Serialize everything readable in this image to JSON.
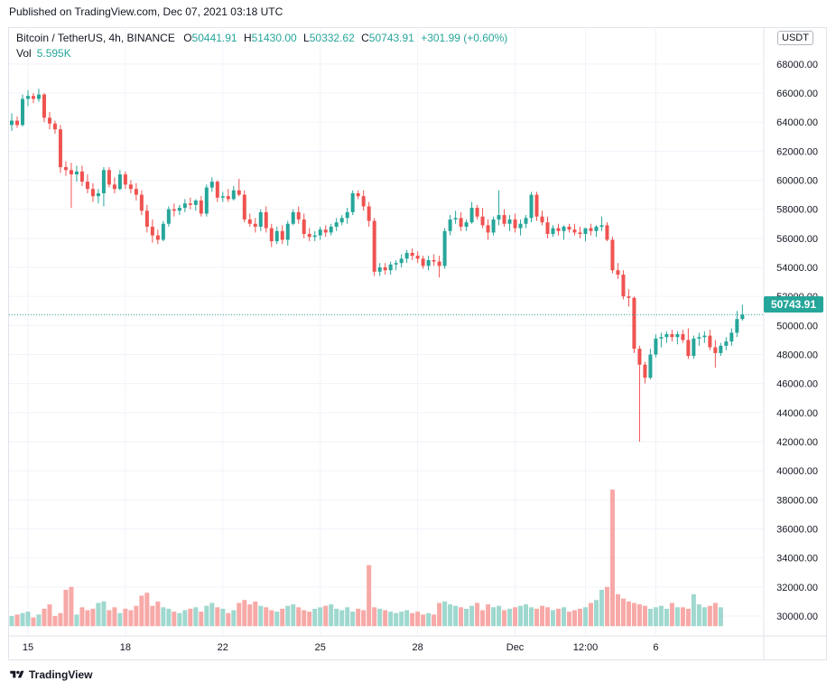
{
  "header": {
    "published": "Published on TradingView.com, Dec 07, 2021 03:18 UTC"
  },
  "legend": {
    "symbol": "Bitcoin / TetherUS, 4h, BINANCE",
    "o_key": "O",
    "o_val": "50441.91",
    "h_key": "H",
    "h_val": "51430.00",
    "l_key": "L",
    "l_val": "50332.62",
    "c_key": "C",
    "c_val": "50743.91",
    "change": "+301.99 (+0.60%)",
    "vol_label": "Vol",
    "vol_val": "5.595K"
  },
  "currency": "USDT",
  "last_price_label": "50743.91",
  "footer": {
    "brand": "TradingView"
  },
  "colors": {
    "up": "#26a69a",
    "down": "#ef5350",
    "vol_up": "#9fd8cf",
    "vol_down": "#f7a9a7",
    "grid": "#f0f3fa"
  },
  "chart_data": {
    "type": "candlestick",
    "y_axis": {
      "range": [
        29500,
        68800
      ],
      "ticks": [
        30000,
        32000,
        34000,
        36000,
        38000,
        40000,
        42000,
        44000,
        46000,
        48000,
        50000,
        52000,
        54000,
        56000,
        58000,
        60000,
        62000,
        64000,
        66000,
        68000
      ],
      "tick_labels": [
        "30000.00",
        "32000.00",
        "34000.00",
        "36000.00",
        "38000.00",
        "40000.00",
        "42000.00",
        "44000.00",
        "46000.00",
        "48000.00",
        "50000.00",
        "52000.00",
        "54000.00",
        "56000.00",
        "58000.00",
        "60000.00",
        "62000.00",
        "64000.00",
        "66000.00",
        "68000.00"
      ]
    },
    "x_axis": {
      "tick_labels": [
        "15",
        "18",
        "22",
        "25",
        "28",
        "Dec",
        "12:00",
        "6"
      ],
      "tick_bar_index": [
        3,
        21,
        39,
        57,
        75,
        93,
        106,
        119
      ]
    },
    "last_price": 50743.91,
    "candles": [
      {
        "o": 63800,
        "h": 64600,
        "l": 63400,
        "c": 64100
      },
      {
        "o": 64100,
        "h": 64400,
        "l": 63600,
        "c": 63800
      },
      {
        "o": 63800,
        "h": 65900,
        "l": 63700,
        "c": 65600
      },
      {
        "o": 65600,
        "h": 66200,
        "l": 65100,
        "c": 65800
      },
      {
        "o": 65800,
        "h": 66000,
        "l": 65300,
        "c": 65600
      },
      {
        "o": 65600,
        "h": 66300,
        "l": 65400,
        "c": 65900
      },
      {
        "o": 65900,
        "h": 66000,
        "l": 64000,
        "c": 64300
      },
      {
        "o": 64300,
        "h": 64700,
        "l": 63500,
        "c": 63900
      },
      {
        "o": 63900,
        "h": 64100,
        "l": 63200,
        "c": 63500
      },
      {
        "o": 63500,
        "h": 63800,
        "l": 60500,
        "c": 60900
      },
      {
        "o": 60900,
        "h": 61300,
        "l": 60300,
        "c": 60700
      },
      {
        "o": 60700,
        "h": 61200,
        "l": 58100,
        "c": 60400
      },
      {
        "o": 60400,
        "h": 61000,
        "l": 59900,
        "c": 60600
      },
      {
        "o": 60600,
        "h": 61000,
        "l": 59600,
        "c": 59900
      },
      {
        "o": 59900,
        "h": 60400,
        "l": 59100,
        "c": 59400
      },
      {
        "o": 59400,
        "h": 59800,
        "l": 58500,
        "c": 58900
      },
      {
        "o": 58900,
        "h": 59400,
        "l": 58400,
        "c": 59100
      },
      {
        "o": 59100,
        "h": 60900,
        "l": 58200,
        "c": 60700
      },
      {
        "o": 60700,
        "h": 60900,
        "l": 59500,
        "c": 59700
      },
      {
        "o": 59700,
        "h": 60200,
        "l": 59100,
        "c": 59400
      },
      {
        "o": 59400,
        "h": 60700,
        "l": 59300,
        "c": 60400
      },
      {
        "o": 60400,
        "h": 60600,
        "l": 59400,
        "c": 59700
      },
      {
        "o": 59700,
        "h": 60000,
        "l": 59100,
        "c": 59400
      },
      {
        "o": 59400,
        "h": 59800,
        "l": 58600,
        "c": 59000
      },
      {
        "o": 59000,
        "h": 59300,
        "l": 57600,
        "c": 57900
      },
      {
        "o": 57900,
        "h": 58300,
        "l": 56400,
        "c": 56800
      },
      {
        "o": 56800,
        "h": 57300,
        "l": 55700,
        "c": 56200
      },
      {
        "o": 56200,
        "h": 56600,
        "l": 55600,
        "c": 55900
      },
      {
        "o": 55900,
        "h": 57200,
        "l": 55800,
        "c": 57000
      },
      {
        "o": 57000,
        "h": 58200,
        "l": 56800,
        "c": 58000
      },
      {
        "o": 58000,
        "h": 58400,
        "l": 57500,
        "c": 57900
      },
      {
        "o": 57900,
        "h": 58300,
        "l": 57600,
        "c": 58100
      },
      {
        "o": 58100,
        "h": 58700,
        "l": 57800,
        "c": 58400
      },
      {
        "o": 58400,
        "h": 58800,
        "l": 58000,
        "c": 58300
      },
      {
        "o": 58300,
        "h": 58700,
        "l": 57900,
        "c": 58600
      },
      {
        "o": 58600,
        "h": 58900,
        "l": 57500,
        "c": 57700
      },
      {
        "o": 57700,
        "h": 59700,
        "l": 57500,
        "c": 59500
      },
      {
        "o": 59500,
        "h": 60200,
        "l": 59200,
        "c": 59900
      },
      {
        "o": 59900,
        "h": 60000,
        "l": 58500,
        "c": 58800
      },
      {
        "o": 58800,
        "h": 59200,
        "l": 58500,
        "c": 58900
      },
      {
        "o": 58900,
        "h": 59400,
        "l": 58500,
        "c": 58700
      },
      {
        "o": 58700,
        "h": 59600,
        "l": 58600,
        "c": 59300
      },
      {
        "o": 59300,
        "h": 60100,
        "l": 58900,
        "c": 59000
      },
      {
        "o": 59000,
        "h": 59300,
        "l": 57100,
        "c": 57300
      },
      {
        "o": 57300,
        "h": 57700,
        "l": 56800,
        "c": 57000
      },
      {
        "o": 57000,
        "h": 57400,
        "l": 56400,
        "c": 56800
      },
      {
        "o": 56800,
        "h": 58000,
        "l": 56500,
        "c": 57800
      },
      {
        "o": 57800,
        "h": 58200,
        "l": 56400,
        "c": 56700
      },
      {
        "o": 56700,
        "h": 57000,
        "l": 55400,
        "c": 55800
      },
      {
        "o": 55800,
        "h": 56800,
        "l": 55600,
        "c": 56500
      },
      {
        "o": 56500,
        "h": 56900,
        "l": 55600,
        "c": 55900
      },
      {
        "o": 55900,
        "h": 57200,
        "l": 55500,
        "c": 57000
      },
      {
        "o": 57000,
        "h": 58000,
        "l": 56900,
        "c": 57800
      },
      {
        "o": 57800,
        "h": 58200,
        "l": 57000,
        "c": 57300
      },
      {
        "o": 57300,
        "h": 57700,
        "l": 56000,
        "c": 56300
      },
      {
        "o": 56300,
        "h": 56700,
        "l": 55800,
        "c": 56100
      },
      {
        "o": 56100,
        "h": 56500,
        "l": 55800,
        "c": 56200
      },
      {
        "o": 56200,
        "h": 56800,
        "l": 55900,
        "c": 56600
      },
      {
        "o": 56600,
        "h": 56900,
        "l": 56100,
        "c": 56400
      },
      {
        "o": 56400,
        "h": 57000,
        "l": 56200,
        "c": 56800
      },
      {
        "o": 56800,
        "h": 57400,
        "l": 56500,
        "c": 57100
      },
      {
        "o": 57100,
        "h": 57600,
        "l": 56900,
        "c": 57400
      },
      {
        "o": 57400,
        "h": 58100,
        "l": 57000,
        "c": 57800
      },
      {
        "o": 57800,
        "h": 59300,
        "l": 57600,
        "c": 59100
      },
      {
        "o": 59100,
        "h": 59300,
        "l": 58700,
        "c": 58900
      },
      {
        "o": 58900,
        "h": 59300,
        "l": 57900,
        "c": 58200
      },
      {
        "o": 58200,
        "h": 58500,
        "l": 56800,
        "c": 57200
      },
      {
        "o": 57200,
        "h": 57400,
        "l": 53400,
        "c": 53700
      },
      {
        "o": 53700,
        "h": 54300,
        "l": 53400,
        "c": 54000
      },
      {
        "o": 54000,
        "h": 54300,
        "l": 53500,
        "c": 53800
      },
      {
        "o": 53800,
        "h": 54400,
        "l": 53500,
        "c": 54200
      },
      {
        "o": 54200,
        "h": 54500,
        "l": 53800,
        "c": 54300
      },
      {
        "o": 54300,
        "h": 54900,
        "l": 54000,
        "c": 54600
      },
      {
        "o": 54600,
        "h": 55200,
        "l": 54300,
        "c": 55000
      },
      {
        "o": 55000,
        "h": 55300,
        "l": 54500,
        "c": 54800
      },
      {
        "o": 54800,
        "h": 55100,
        "l": 54300,
        "c": 54600
      },
      {
        "o": 54600,
        "h": 54800,
        "l": 53900,
        "c": 54100
      },
      {
        "o": 54100,
        "h": 54800,
        "l": 53800,
        "c": 54500
      },
      {
        "o": 54500,
        "h": 54900,
        "l": 54100,
        "c": 54400
      },
      {
        "o": 54400,
        "h": 54800,
        "l": 53300,
        "c": 54100
      },
      {
        "o": 54100,
        "h": 56700,
        "l": 53900,
        "c": 56500
      },
      {
        "o": 56500,
        "h": 57600,
        "l": 56200,
        "c": 57300
      },
      {
        "o": 57300,
        "h": 57900,
        "l": 57000,
        "c": 57400
      },
      {
        "o": 57400,
        "h": 57800,
        "l": 56500,
        "c": 56800
      },
      {
        "o": 56800,
        "h": 57300,
        "l": 56500,
        "c": 57100
      },
      {
        "o": 57100,
        "h": 58500,
        "l": 57000,
        "c": 58100
      },
      {
        "o": 58100,
        "h": 58300,
        "l": 57300,
        "c": 57500
      },
      {
        "o": 57500,
        "h": 58100,
        "l": 56700,
        "c": 56900
      },
      {
        "o": 56900,
        "h": 57300,
        "l": 55900,
        "c": 56400
      },
      {
        "o": 56400,
        "h": 57500,
        "l": 56200,
        "c": 57300
      },
      {
        "o": 57300,
        "h": 59300,
        "l": 56900,
        "c": 57600
      },
      {
        "o": 57600,
        "h": 58000,
        "l": 56800,
        "c": 57000
      },
      {
        "o": 57000,
        "h": 57600,
        "l": 56500,
        "c": 57300
      },
      {
        "o": 57300,
        "h": 57700,
        "l": 56400,
        "c": 56700
      },
      {
        "o": 56700,
        "h": 57300,
        "l": 56200,
        "c": 57000
      },
      {
        "o": 57000,
        "h": 57600,
        "l": 56700,
        "c": 57400
      },
      {
        "o": 57400,
        "h": 59200,
        "l": 57100,
        "c": 59000
      },
      {
        "o": 59000,
        "h": 59200,
        "l": 57200,
        "c": 57500
      },
      {
        "o": 57500,
        "h": 57900,
        "l": 56900,
        "c": 57100
      },
      {
        "o": 57100,
        "h": 57500,
        "l": 56000,
        "c": 56300
      },
      {
        "o": 56300,
        "h": 56900,
        "l": 56100,
        "c": 56700
      },
      {
        "o": 56700,
        "h": 57000,
        "l": 56200,
        "c": 56500
      },
      {
        "o": 56500,
        "h": 56900,
        "l": 55900,
        "c": 56800
      },
      {
        "o": 56800,
        "h": 57000,
        "l": 56400,
        "c": 56600
      },
      {
        "o": 56600,
        "h": 57000,
        "l": 56200,
        "c": 56400
      },
      {
        "o": 56400,
        "h": 56800,
        "l": 56000,
        "c": 56300
      },
      {
        "o": 56300,
        "h": 56700,
        "l": 55800,
        "c": 56700
      },
      {
        "o": 56700,
        "h": 57000,
        "l": 56200,
        "c": 56500
      },
      {
        "o": 56500,
        "h": 56900,
        "l": 56100,
        "c": 56800
      },
      {
        "o": 56800,
        "h": 57500,
        "l": 56500,
        "c": 56900
      },
      {
        "o": 56900,
        "h": 57100,
        "l": 55800,
        "c": 55900
      },
      {
        "o": 55900,
        "h": 56100,
        "l": 53600,
        "c": 53800
      },
      {
        "o": 53800,
        "h": 54300,
        "l": 53200,
        "c": 53500
      },
      {
        "o": 53500,
        "h": 53800,
        "l": 51800,
        "c": 52000
      },
      {
        "o": 52000,
        "h": 52500,
        "l": 51300,
        "c": 51900
      },
      {
        "o": 51900,
        "h": 52000,
        "l": 48100,
        "c": 48400
      },
      {
        "o": 48400,
        "h": 48600,
        "l": 42000,
        "c": 47300
      },
      {
        "o": 47300,
        "h": 47500,
        "l": 46000,
        "c": 46400
      },
      {
        "o": 46400,
        "h": 48400,
        "l": 46300,
        "c": 48000
      },
      {
        "o": 48000,
        "h": 49400,
        "l": 47800,
        "c": 49100
      },
      {
        "o": 49100,
        "h": 49500,
        "l": 48500,
        "c": 49200
      },
      {
        "o": 49200,
        "h": 49600,
        "l": 48800,
        "c": 49400
      },
      {
        "o": 49400,
        "h": 49700,
        "l": 48900,
        "c": 49200
      },
      {
        "o": 49200,
        "h": 49600,
        "l": 48700,
        "c": 49400
      },
      {
        "o": 49400,
        "h": 49700,
        "l": 48800,
        "c": 49000
      },
      {
        "o": 49000,
        "h": 49800,
        "l": 47700,
        "c": 47900
      },
      {
        "o": 47900,
        "h": 49300,
        "l": 47700,
        "c": 49100
      },
      {
        "o": 49100,
        "h": 49500,
        "l": 48600,
        "c": 49200
      },
      {
        "o": 49200,
        "h": 49600,
        "l": 48800,
        "c": 49300
      },
      {
        "o": 49300,
        "h": 49700,
        "l": 48300,
        "c": 48500
      },
      {
        "o": 48500,
        "h": 49000,
        "l": 47100,
        "c": 48100
      },
      {
        "o": 48100,
        "h": 48800,
        "l": 47900,
        "c": 48600
      },
      {
        "o": 48600,
        "h": 49200,
        "l": 48300,
        "c": 48900
      },
      {
        "o": 48900,
        "h": 49800,
        "l": 48600,
        "c": 49500
      },
      {
        "o": 49500,
        "h": 51000,
        "l": 49200,
        "c": 50442
      },
      {
        "o": 50442,
        "h": 51430,
        "l": 50333,
        "c": 50744
      }
    ],
    "volume_scale": [
      29300,
      39000
    ],
    "volume_units": "axis-price-units",
    "volumes": [
      30000,
      30100,
      30200,
      30300,
      29900,
      30100,
      30500,
      30800,
      30000,
      30200,
      31800,
      32000,
      30100,
      30600,
      30400,
      30500,
      30900,
      31000,
      30400,
      30600,
      30200,
      30500,
      30400,
      30700,
      31400,
      31600,
      30700,
      31000,
      30600,
      30500,
      30300,
      30200,
      30400,
      30500,
      30600,
      30300,
      30700,
      30900,
      30600,
      30500,
      30200,
      30400,
      30900,
      31100,
      30800,
      31000,
      30700,
      30600,
      30400,
      30300,
      30500,
      30700,
      30800,
      30600,
      30400,
      30300,
      30500,
      30600,
      30700,
      30800,
      30500,
      30400,
      30600,
      30300,
      30500,
      30400,
      33500,
      30600,
      30500,
      30400,
      30300,
      30200,
      30300,
      30400,
      30200,
      30300,
      30100,
      30200,
      30100,
      30900,
      31000,
      30800,
      30700,
      30600,
      30500,
      30700,
      30900,
      30400,
      30800,
      30600,
      30700,
      30400,
      30500,
      30600,
      30700,
      30800,
      30600,
      30500,
      30700,
      30600,
      30400,
      30500,
      30600,
      30300,
      30400,
      30500,
      30600,
      30900,
      31100,
      31800,
      32000,
      38700,
      31500,
      31200,
      31000,
      30900,
      30800,
      30700,
      30500,
      30600,
      30700,
      30500,
      30900,
      30600,
      30600,
      30500,
      31500,
      30800,
      30600,
      30700,
      30900,
      30600
    ],
    "volume_direction": "from-candle"
  }
}
